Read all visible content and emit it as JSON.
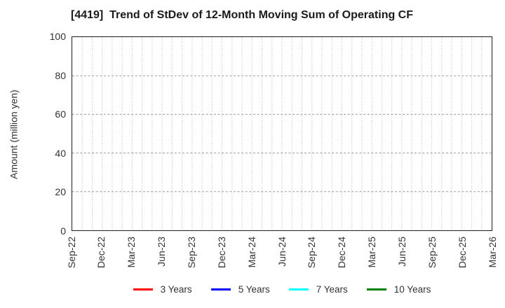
{
  "chart_data": {
    "type": "line",
    "title": "[4419]  Trend of StDev of 12-Month Moving Sum of Operating CF",
    "ylabel": "Amount (million yen)",
    "xlabel": "",
    "ylim": [
      0,
      100
    ],
    "yticks": [
      0,
      20,
      40,
      60,
      80,
      100
    ],
    "x_tick_labels": [
      "Sep-22",
      "Dec-22",
      "Mar-23",
      "Jun-23",
      "Sep-23",
      "Dec-23",
      "Mar-24",
      "Jun-24",
      "Sep-24",
      "Dec-24",
      "Mar-25",
      "Jun-25",
      "Sep-25",
      "Dec-25",
      "Mar-26"
    ],
    "x_range_months": 42,
    "grid": true,
    "legend_position": "bottom",
    "series": [
      {
        "name": "3 Years",
        "color": "#ff0000",
        "values": []
      },
      {
        "name": "5 Years",
        "color": "#0000ff",
        "values": []
      },
      {
        "name": "7 Years",
        "color": "#00ffff",
        "values": []
      },
      {
        "name": "10 Years",
        "color": "#008000",
        "values": []
      }
    ]
  },
  "style": {
    "grid_minor_color": "#b5b5b5",
    "grid_major_color": "#999999",
    "axis_color": "#1c1c1c",
    "tick_label_color": "#333333",
    "title_color": "#1a1a1a"
  }
}
